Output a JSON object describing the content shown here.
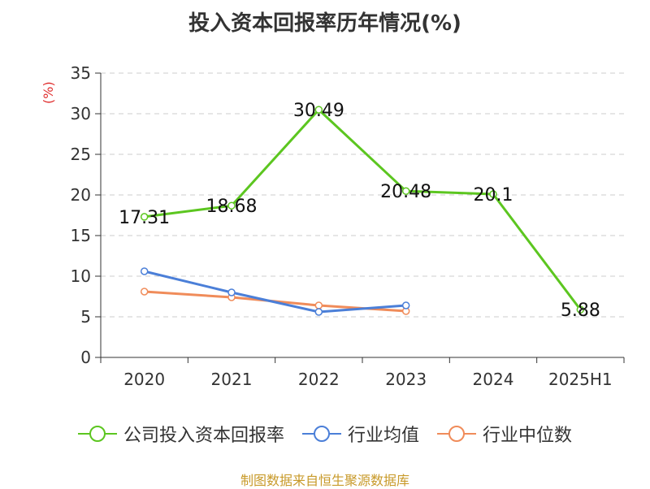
{
  "chart_data": {
    "type": "line",
    "title": "投入资本回报率历年情况(%)",
    "ylabel": "(%)",
    "categories": [
      "2020",
      "2021",
      "2022",
      "2023",
      "2024",
      "2025H1"
    ],
    "ylim": [
      0,
      35
    ],
    "yticks": [
      0,
      5,
      10,
      15,
      20,
      25,
      30,
      35
    ],
    "grid": true,
    "legend_position": "bottom",
    "series": [
      {
        "name": "公司投入资本回报率",
        "color": "#5cc620",
        "values": [
          17.31,
          18.68,
          30.49,
          20.48,
          20.1,
          5.88
        ],
        "labels": [
          "17.31",
          "18.68",
          "30.49",
          "20.48",
          "20.1",
          "5.88"
        ]
      },
      {
        "name": "行业均值",
        "color": "#4b7fd8",
        "values": [
          10.6,
          8.0,
          5.6,
          6.4,
          null,
          null
        ]
      },
      {
        "name": "行业中位数",
        "color": "#f08c5a",
        "values": [
          8.1,
          7.4,
          6.4,
          5.7,
          null,
          null
        ]
      }
    ]
  },
  "source": "制图数据来自恒生聚源数据库"
}
